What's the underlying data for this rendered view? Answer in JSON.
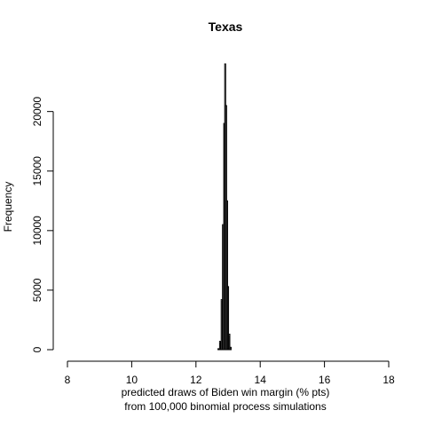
{
  "chart_data": {
    "type": "bar",
    "title": "Texas",
    "xlabel_line1": "predicted draws of Biden win margin (% pts)",
    "xlabel_line2": "from 100,000 binomial process simulations",
    "ylabel": "Frequency",
    "xlim": [
      8,
      18
    ],
    "ylim": [
      0,
      24000
    ],
    "x_ticks": [
      "8",
      "10",
      "12",
      "14",
      "16",
      "18"
    ],
    "y_ticks": [
      "0",
      "5000",
      "10000",
      "15000",
      "20000"
    ],
    "bins": [
      {
        "x": 12.7,
        "value": 80
      },
      {
        "x": 12.75,
        "value": 700
      },
      {
        "x": 12.8,
        "value": 4200
      },
      {
        "x": 12.84,
        "value": 10500
      },
      {
        "x": 12.88,
        "value": 19000
      },
      {
        "x": 12.91,
        "value": 24000
      },
      {
        "x": 12.94,
        "value": 20500
      },
      {
        "x": 12.97,
        "value": 12500
      },
      {
        "x": 13.0,
        "value": 5300
      },
      {
        "x": 13.04,
        "value": 1300
      },
      {
        "x": 13.08,
        "value": 200
      }
    ],
    "grid": false,
    "legend": "none"
  }
}
